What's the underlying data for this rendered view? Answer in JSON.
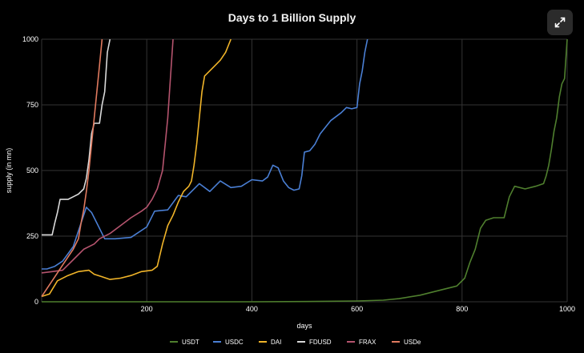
{
  "chart_data": {
    "type": "line",
    "title": "Days to 1 Billion Supply",
    "xlabel": "days",
    "ylabel": "supply (in mn)",
    "xlim": [
      0,
      1000
    ],
    "ylim": [
      0,
      1000
    ],
    "x_ticks": [
      200,
      400,
      600,
      800,
      1000
    ],
    "y_ticks": [
      0,
      250,
      500,
      750,
      1000
    ],
    "grid": true,
    "legend_position": "bottom",
    "series": [
      {
        "name": "USDT",
        "color": "#4f7f2e",
        "points": [
          [
            0,
            0
          ],
          [
            200,
            0
          ],
          [
            400,
            0
          ],
          [
            500,
            1
          ],
          [
            600,
            3
          ],
          [
            650,
            6
          ],
          [
            680,
            12
          ],
          [
            720,
            25
          ],
          [
            760,
            45
          ],
          [
            790,
            60
          ],
          [
            805,
            90
          ],
          [
            815,
            150
          ],
          [
            825,
            200
          ],
          [
            835,
            280
          ],
          [
            845,
            310
          ],
          [
            860,
            320
          ],
          [
            880,
            320
          ],
          [
            890,
            400
          ],
          [
            900,
            440
          ],
          [
            920,
            430
          ],
          [
            940,
            440
          ],
          [
            955,
            450
          ],
          [
            960,
            480
          ],
          [
            965,
            520
          ],
          [
            970,
            580
          ],
          [
            975,
            650
          ],
          [
            980,
            700
          ],
          [
            985,
            780
          ],
          [
            990,
            830
          ],
          [
            995,
            850
          ],
          [
            1000,
            1000
          ]
        ]
      },
      {
        "name": "USDC",
        "color": "#4a7fd4",
        "points": [
          [
            0,
            125
          ],
          [
            10,
            125
          ],
          [
            25,
            135
          ],
          [
            40,
            155
          ],
          [
            60,
            210
          ],
          [
            75,
            300
          ],
          [
            85,
            360
          ],
          [
            95,
            340
          ],
          [
            105,
            300
          ],
          [
            120,
            240
          ],
          [
            140,
            240
          ],
          [
            170,
            245
          ],
          [
            200,
            285
          ],
          [
            215,
            345
          ],
          [
            240,
            350
          ],
          [
            260,
            405
          ],
          [
            275,
            400
          ],
          [
            300,
            450
          ],
          [
            320,
            420
          ],
          [
            340,
            460
          ],
          [
            360,
            435
          ],
          [
            380,
            440
          ],
          [
            400,
            465
          ],
          [
            420,
            460
          ],
          [
            430,
            475
          ],
          [
            440,
            520
          ],
          [
            450,
            510
          ],
          [
            460,
            460
          ],
          [
            470,
            435
          ],
          [
            480,
            425
          ],
          [
            490,
            430
          ],
          [
            495,
            480
          ],
          [
            500,
            570
          ],
          [
            510,
            575
          ],
          [
            520,
            600
          ],
          [
            530,
            640
          ],
          [
            550,
            690
          ],
          [
            570,
            720
          ],
          [
            580,
            740
          ],
          [
            590,
            735
          ],
          [
            600,
            740
          ],
          [
            605,
            830
          ],
          [
            610,
            880
          ],
          [
            615,
            950
          ],
          [
            620,
            1000
          ]
        ]
      },
      {
        "name": "DAI",
        "color": "#f0b429",
        "points": [
          [
            0,
            20
          ],
          [
            15,
            30
          ],
          [
            30,
            80
          ],
          [
            50,
            100
          ],
          [
            70,
            115
          ],
          [
            90,
            120
          ],
          [
            100,
            105
          ],
          [
            115,
            95
          ],
          [
            130,
            85
          ],
          [
            150,
            90
          ],
          [
            170,
            100
          ],
          [
            190,
            115
          ],
          [
            210,
            120
          ],
          [
            220,
            135
          ],
          [
            230,
            220
          ],
          [
            240,
            290
          ],
          [
            250,
            330
          ],
          [
            260,
            380
          ],
          [
            270,
            420
          ],
          [
            280,
            440
          ],
          [
            285,
            460
          ],
          [
            290,
            520
          ],
          [
            295,
            600
          ],
          [
            300,
            700
          ],
          [
            305,
            800
          ],
          [
            310,
            860
          ],
          [
            320,
            880
          ],
          [
            330,
            900
          ],
          [
            340,
            920
          ],
          [
            350,
            950
          ],
          [
            360,
            1000
          ]
        ]
      },
      {
        "name": "FDUSD",
        "color": "#d9d9d9",
        "points": [
          [
            0,
            255
          ],
          [
            10,
            255
          ],
          [
            20,
            255
          ],
          [
            25,
            300
          ],
          [
            30,
            340
          ],
          [
            35,
            390
          ],
          [
            50,
            390
          ],
          [
            60,
            400
          ],
          [
            70,
            410
          ],
          [
            80,
            430
          ],
          [
            85,
            470
          ],
          [
            90,
            540
          ],
          [
            95,
            640
          ],
          [
            100,
            680
          ],
          [
            110,
            680
          ],
          [
            115,
            750
          ],
          [
            120,
            800
          ],
          [
            125,
            950
          ],
          [
            130,
            1000
          ]
        ]
      },
      {
        "name": "FRAX",
        "color": "#b5546e",
        "points": [
          [
            0,
            110
          ],
          [
            20,
            115
          ],
          [
            40,
            120
          ],
          [
            60,
            160
          ],
          [
            70,
            180
          ],
          [
            80,
            200
          ],
          [
            100,
            220
          ],
          [
            110,
            240
          ],
          [
            130,
            260
          ],
          [
            150,
            290
          ],
          [
            170,
            320
          ],
          [
            190,
            345
          ],
          [
            200,
            360
          ],
          [
            210,
            390
          ],
          [
            220,
            430
          ],
          [
            230,
            500
          ],
          [
            235,
            600
          ],
          [
            240,
            700
          ],
          [
            245,
            850
          ],
          [
            250,
            1000
          ]
        ]
      },
      {
        "name": "USDe",
        "color": "#e07a5f",
        "points": [
          [
            0,
            20
          ],
          [
            10,
            50
          ],
          [
            20,
            80
          ],
          [
            30,
            110
          ],
          [
            40,
            140
          ],
          [
            50,
            170
          ],
          [
            60,
            200
          ],
          [
            70,
            240
          ],
          [
            75,
            300
          ],
          [
            80,
            350
          ],
          [
            85,
            420
          ],
          [
            90,
            500
          ],
          [
            95,
            600
          ],
          [
            100,
            700
          ],
          [
            105,
            800
          ],
          [
            110,
            900
          ],
          [
            115,
            1000
          ]
        ]
      }
    ]
  },
  "ui": {
    "expand_icon": "expand-arrows-icon"
  }
}
